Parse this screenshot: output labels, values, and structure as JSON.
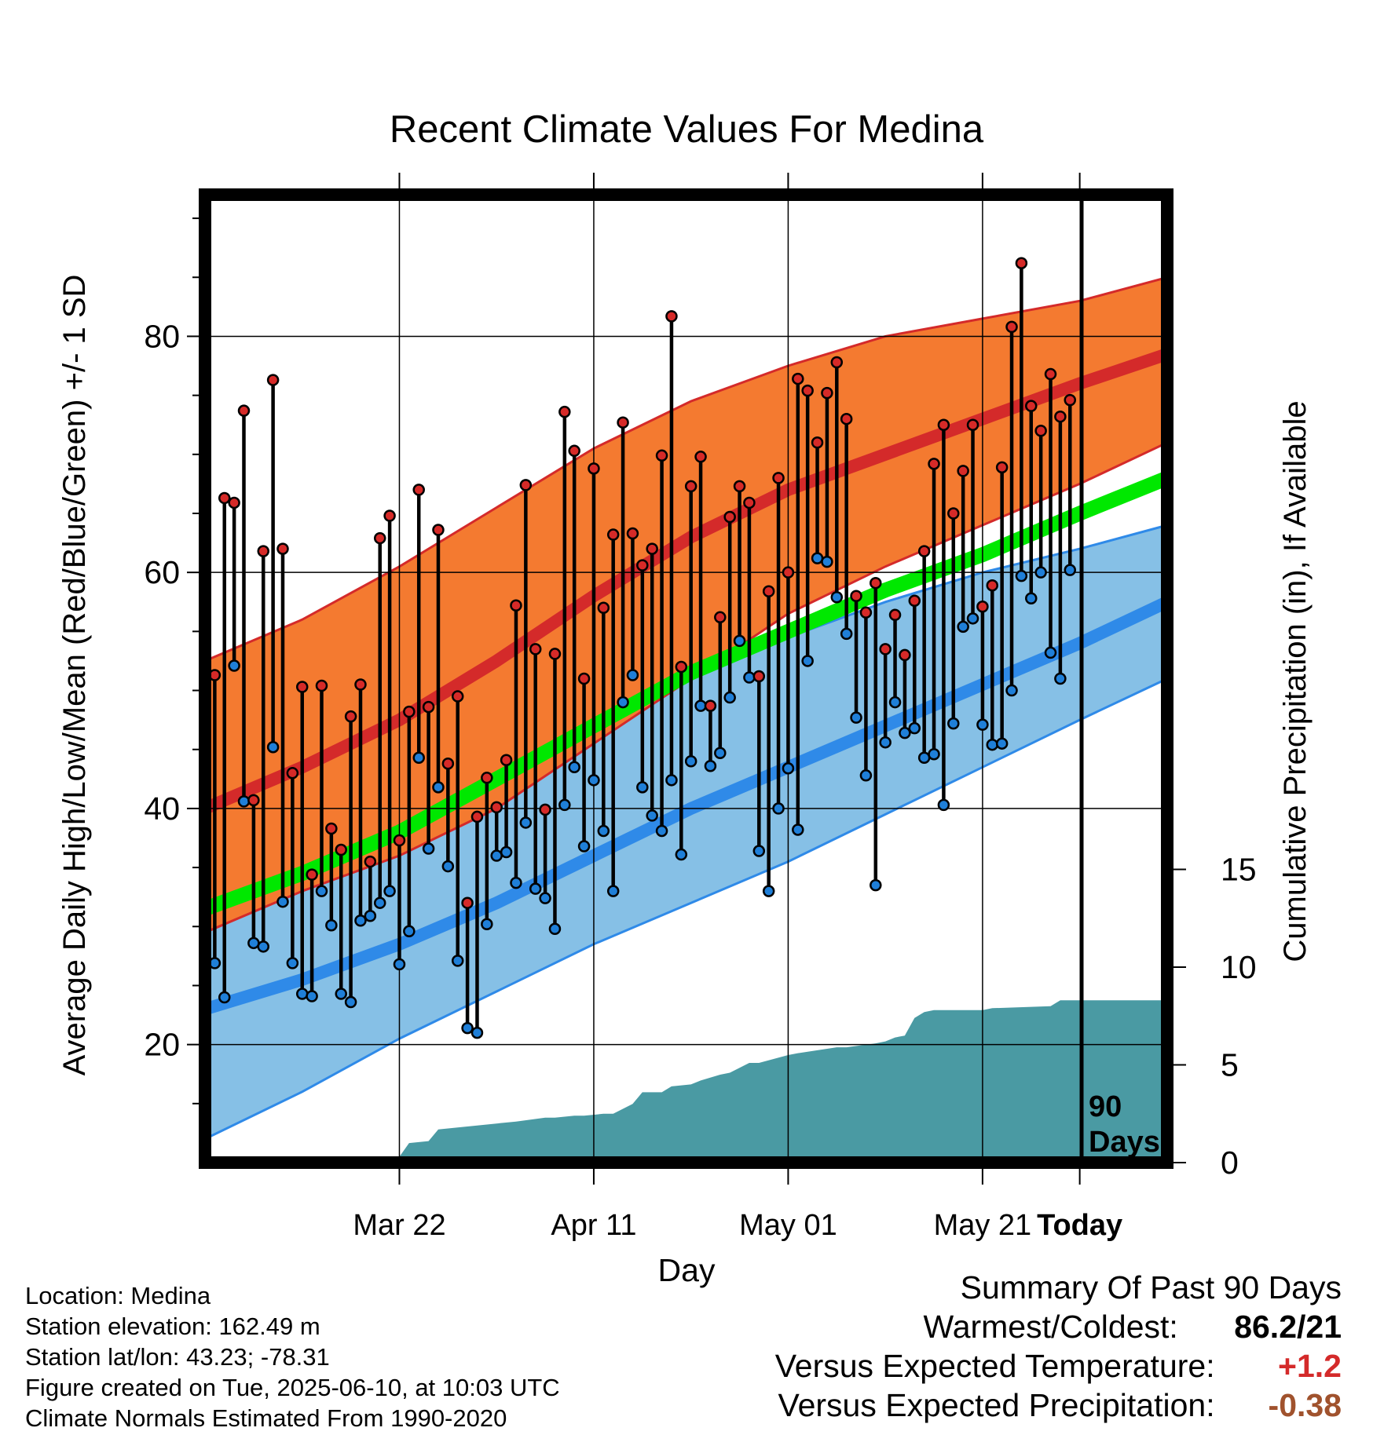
{
  "chart_data": {
    "type": "line",
    "title": "Recent Climate Values For Medina",
    "xlabel": "Day",
    "ylabel": "Average Daily High/Low/Mean (Red/Blue/Green) +/- 1 SD",
    "y2label": "Cumulative Precipitation (in), If Available",
    "x_tick_labels": [
      "Mar 22",
      "Apr 11",
      "May 01",
      "May 21",
      "Today"
    ],
    "y_ticks": [
      "20",
      "40",
      "60",
      "80"
    ],
    "y2_ticks": [
      "0",
      "5",
      "10",
      "15"
    ],
    "ylim": [
      10,
      92
    ],
    "y2lim": [
      0,
      25
    ],
    "xlim_days_relative_to_today": [
      -90,
      9
    ],
    "grid": true,
    "window_label_line1": "90",
    "window_label_line2": "Days",
    "colors": {
      "high_band": "#f47a30",
      "high_mean": "#d42a2a",
      "low_band": "#86c0e6",
      "low_mean": "#2f8ae8",
      "mean": "#00e800",
      "precip": "#4a9aa3",
      "high_marker": "#d62a28",
      "low_marker": "#1f7fd8"
    },
    "normals": {
      "days": [
        -90,
        -80,
        -70,
        -60,
        -50,
        -40,
        -30,
        -20,
        -10,
        0,
        9
      ],
      "high_mean": [
        40,
        43.5,
        47.5,
        52.5,
        58,
        63,
        67,
        70,
        73,
        76,
        78.5
      ],
      "high_sd_upper": [
        52.5,
        56,
        60.5,
        65.5,
        70.5,
        74.5,
        77.5,
        80,
        81.5,
        83,
        85
      ],
      "high_sd_lower": [
        29.5,
        33,
        36,
        40,
        45.5,
        51,
        56.5,
        60.5,
        64,
        67.5,
        71
      ],
      "low_mean": [
        23,
        25.5,
        28.5,
        32,
        36,
        40,
        43.5,
        47,
        50.5,
        54,
        57.5
      ],
      "low_sd_upper": [
        33.5,
        36,
        39.5,
        43.5,
        47.5,
        51,
        54.5,
        57.5,
        60,
        62,
        64
      ],
      "low_sd_lower": [
        12,
        16,
        20.5,
        24.5,
        28.5,
        32,
        35.5,
        39.5,
        43.5,
        47.5,
        51
      ],
      "mean": [
        31.5,
        34.5,
        38,
        42.5,
        47,
        51.5,
        55,
        58.5,
        61.5,
        65,
        68
      ]
    },
    "daily": {
      "days": [
        -90,
        -89,
        -88,
        -87,
        -86,
        -85,
        -84,
        -83,
        -82,
        -81,
        -80,
        -79,
        -78,
        -77,
        -76,
        -75,
        -74,
        -73,
        -72,
        -71,
        -70,
        -69,
        -68,
        -67,
        -66,
        -65,
        -64,
        -63,
        -62,
        -61,
        -60,
        -59,
        -58,
        -57,
        -56,
        -55,
        -54,
        -53,
        -52,
        -51,
        -50,
        -49,
        -48,
        -47,
        -46,
        -45,
        -44,
        -43,
        -42,
        -41,
        -40,
        -39,
        -38,
        -37,
        -36,
        -35,
        -34,
        -33,
        -32,
        -31,
        -30,
        -29,
        -28,
        -27,
        -26,
        -25,
        -24,
        -23,
        -22,
        -21,
        -20,
        -19,
        -18,
        -17,
        -16,
        -15,
        -14,
        -13,
        -12,
        -11,
        -10,
        -9,
        -8,
        -7,
        -6,
        -5,
        -4,
        -3,
        -2,
        -1
      ],
      "high": [
        36.5,
        51.3,
        66.3,
        65.9,
        73.7,
        40.7,
        61.8,
        76.3,
        62,
        43,
        50.3,
        34.4,
        50.4,
        38.3,
        36.5,
        47.8,
        50.5,
        35.5,
        62.9,
        64.8,
        37.3,
        48.2,
        67,
        48.6,
        63.6,
        43.8,
        49.5,
        32,
        39.3,
        42.6,
        40.1,
        44.1,
        57.2,
        67.4,
        53.5,
        39.9,
        53.1,
        73.6,
        70.3,
        51,
        68.8,
        57,
        63.2,
        72.7,
        63.3,
        60.6,
        62,
        69.9,
        81.7,
        52,
        67.3,
        69.8,
        48.7,
        56.2,
        64.7,
        67.3,
        65.9,
        51.2,
        58.4,
        68,
        60,
        76.4,
        75.4,
        71,
        75.2,
        77.8,
        73,
        58,
        56.6,
        59.1,
        53.5,
        56.4,
        53,
        57.6,
        61.8,
        69.2,
        72.5,
        65,
        68.6,
        72.5,
        57.1,
        58.9,
        68.9,
        80.8,
        86.2,
        74.1,
        72,
        76.8,
        73.2,
        74.6
      ],
      "low": [
        22.5,
        26.9,
        24,
        52.1,
        40.6,
        28.6,
        28.3,
        45.2,
        32.1,
        26.9,
        24.3,
        24.1,
        33,
        30.1,
        24.3,
        23.6,
        30.5,
        30.9,
        32,
        33,
        26.8,
        29.6,
        44.3,
        36.6,
        41.8,
        35.1,
        27.1,
        21.4,
        21,
        30.2,
        36,
        36.3,
        33.7,
        38.8,
        33.2,
        32.4,
        29.8,
        40.3,
        43.5,
        36.8,
        42.4,
        38.1,
        33,
        49,
        51.3,
        41.8,
        39.4,
        38.1,
        42.4,
        36.1,
        44,
        48.7,
        43.6,
        44.7,
        49.4,
        54.2,
        51.1,
        36.4,
        33,
        40,
        43.4,
        38.2,
        52.5,
        61.2,
        60.9,
        57.9,
        54.8,
        47.7,
        42.8,
        33.5,
        45.6,
        49,
        46.4,
        46.8,
        44.3,
        44.6,
        40.3,
        47.2,
        55.4,
        56.1,
        47.1,
        45.4,
        45.5,
        50,
        59.7,
        57.8,
        60,
        53.2,
        51,
        60.2
      ]
    },
    "precip_cumulative": {
      "days": [
        -90,
        -80,
        -79,
        -70,
        -69,
        -67,
        -66,
        -64,
        -62,
        -60,
        -58,
        -55,
        -54,
        -52,
        -51,
        -49,
        -48,
        -46,
        -45,
        -43,
        -42,
        -40,
        -39,
        -37,
        -36,
        -34,
        -33,
        -30,
        -29,
        -25,
        -24,
        -21,
        -20,
        -19,
        -18,
        -17,
        -16,
        -15,
        -10,
        -9,
        -3,
        -2,
        0,
        9
      ],
      "values": [
        0,
        0,
        0.1,
        0.3,
        1,
        1.1,
        1.7,
        1.8,
        1.9,
        2,
        2.1,
        2.3,
        2.3,
        2.4,
        2.4,
        2.5,
        2.5,
        3,
        3.6,
        3.6,
        3.9,
        4,
        4.2,
        4.5,
        4.6,
        5.1,
        5.1,
        5.5,
        5.6,
        5.9,
        5.9,
        6.1,
        6.2,
        6.4,
        6.5,
        7.4,
        7.7,
        7.8,
        7.8,
        7.9,
        8,
        8.3,
        8.3,
        8.3
      ]
    }
  },
  "footer": {
    "location": "Location: Medina",
    "elevation": "Station elevation: 162.49 m",
    "latlon": "Station lat/lon: 43.23; -78.31",
    "created": "Figure created on Tue, 2025-06-10, at 10:03 UTC",
    "normals_source": "Climate Normals Estimated From 1990-2020"
  },
  "summary": {
    "title": "Summary Of Past 90 Days",
    "warm_cold_label": "Warmest/Coldest:",
    "warm_cold_value": "86.2/21",
    "temp_label": "Versus Expected Temperature:",
    "temp_value": "+1.2",
    "temp_color": "#d42a2a",
    "precip_label": "Versus Expected Precipitation:",
    "precip_value": "-0.38",
    "precip_color": "#a0522d"
  }
}
